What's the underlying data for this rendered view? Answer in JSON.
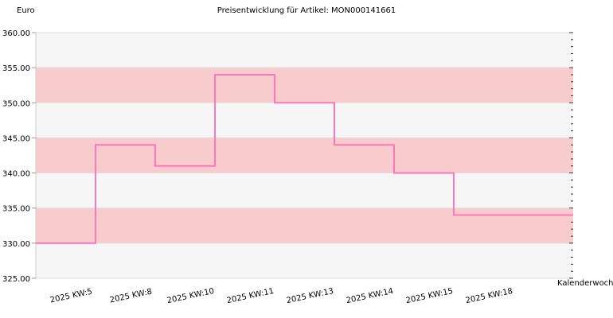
{
  "chart_data": {
    "type": "line",
    "step": true,
    "title": "Preisentwicklung für Artikel: MON000141661",
    "ylabel": "Euro",
    "xlabel": "Kalenderwoche",
    "ylim": [
      325,
      360
    ],
    "y_ticks": [
      "325.00",
      "330.00",
      "335.00",
      "340.00",
      "345.00",
      "350.00",
      "355.00",
      "360.00"
    ],
    "categories": [
      "2025 KW:5",
      "2025 KW:8",
      "2025 KW:10",
      "2025 KW:11",
      "2025 KW:13",
      "2025 KW:14",
      "2025 KW:15",
      "2025 KW:18"
    ],
    "series": [
      {
        "values": [
          330,
          344,
          341,
          354,
          350,
          344,
          340,
          334
        ]
      }
    ],
    "grid": true,
    "colors": {
      "line": "#ff77bb",
      "band_light": "#f6f6f6",
      "band_dark": "#f8cccc",
      "grid": "#dddddd"
    }
  }
}
